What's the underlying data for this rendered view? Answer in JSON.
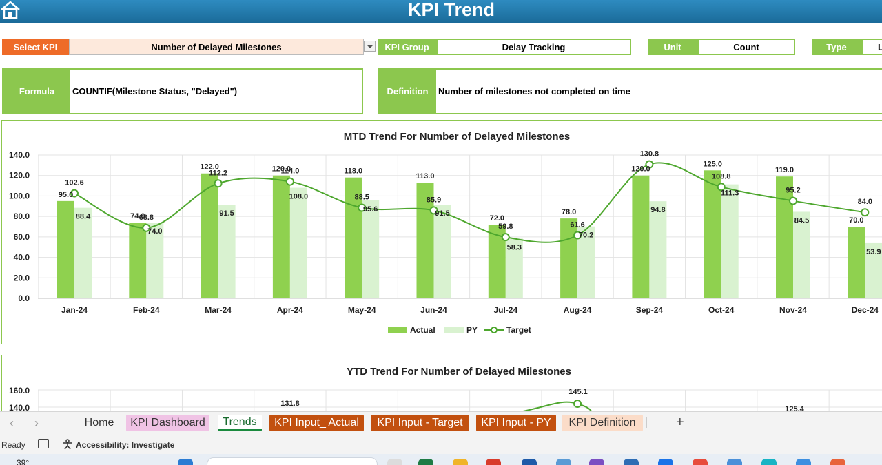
{
  "header": {
    "title": "KPI Trend"
  },
  "selector": {
    "select_kpi_label": "Select KPI",
    "select_kpi_value": "Number of Delayed Milestones",
    "kpi_group_label": "KPI Group",
    "kpi_group_value": "Delay Tracking",
    "unit_label": "Unit",
    "unit_value": "Count",
    "type_label": "Type",
    "type_value": "L"
  },
  "formula": {
    "label": "Formula",
    "value": "COUNTIF(Milestone Status, \"Delayed\")"
  },
  "definition": {
    "label": "Definition",
    "value": "Number of milestones not completed on time"
  },
  "chart_data": [
    {
      "type": "bar",
      "title": "MTD Trend For Number of Delayed Milestones",
      "categories": [
        "Jan-24",
        "Feb-24",
        "Mar-24",
        "Apr-24",
        "May-24",
        "Jun-24",
        "Jul-24",
        "Aug-24",
        "Sep-24",
        "Oct-24",
        "Nov-24",
        "Dec-24"
      ],
      "series": [
        {
          "name": "Actual",
          "kind": "bar",
          "values": [
            95.0,
            74.0,
            122.0,
            120.0,
            118.0,
            113.0,
            72.0,
            78.0,
            120.0,
            125.0,
            119.0,
            70.0
          ]
        },
        {
          "name": "PY",
          "kind": "bar",
          "values": [
            88.4,
            74.0,
            91.5,
            108.0,
            95.6,
            91.5,
            58.3,
            70.2,
            94.8,
            111.3,
            84.5,
            53.9
          ]
        },
        {
          "name": "Target",
          "kind": "line",
          "values": [
            102.6,
            68.8,
            112.2,
            114.0,
            88.5,
            85.9,
            59.8,
            61.6,
            130.8,
            108.8,
            95.2,
            84.0
          ]
        }
      ],
      "y_ticks": [
        "0.0",
        "20.0",
        "40.0",
        "60.0",
        "80.0",
        "100.0",
        "120.0",
        "140.0"
      ],
      "ylim": [
        0,
        140
      ],
      "legend": [
        "Actual",
        "PY",
        "Target"
      ],
      "colors": {
        "actual": "#8fd14f",
        "py": "#d9f2d0",
        "target": "#4ea72e"
      },
      "grid": true,
      "legend_position": "bottom"
    },
    {
      "type": "bar",
      "title": "YTD Trend For Number of Delayed Milestones",
      "y_ticks_visible": [
        "160.0",
        "140.0"
      ],
      "ylim": [
        0,
        160
      ],
      "visible_labels": [
        "131.8",
        "145.1",
        "125.4"
      ],
      "colors": {
        "target": "#4ea72e"
      },
      "grid": true
    }
  ],
  "tabs": {
    "home": "Home",
    "kpi_dashboard": "KPI Dashboard",
    "trends": "Trends",
    "kpi_input_actual": "KPI Input_ Actual",
    "kpi_input_target": "KPI Input - Target",
    "kpi_input_py": "KPI Input - PY",
    "kpi_definition": "KPI Definition",
    "add": "+"
  },
  "status": {
    "ready": "Ready",
    "accessibility": "Accessibility: Investigate"
  },
  "taskbar": {
    "temperature": "39°"
  }
}
